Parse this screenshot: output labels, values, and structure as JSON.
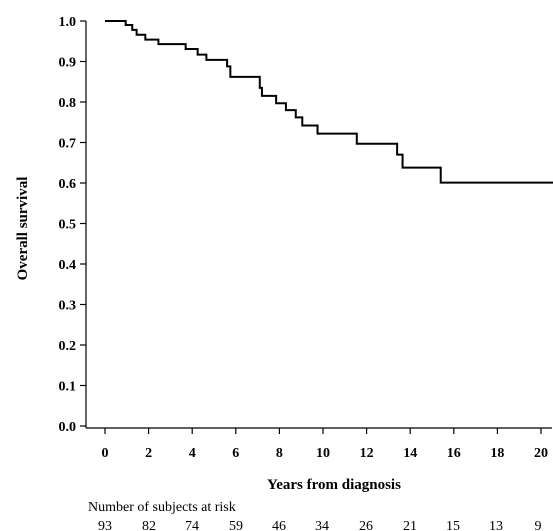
{
  "chart_data": {
    "type": "line",
    "subtype": "kaplan-meier step curve",
    "xlabel": "Years from diagnosis",
    "ylabel": "Overall survival",
    "xlim": [
      0,
      20.6
    ],
    "ylim": [
      0,
      1.0
    ],
    "x_ticks": [
      0,
      2,
      4,
      6,
      8,
      10,
      12,
      14,
      16,
      18,
      20
    ],
    "y_ticks": [
      0.0,
      0.1,
      0.2,
      0.3,
      0.4,
      0.5,
      0.6,
      0.7,
      0.8,
      0.9,
      1.0
    ],
    "x_tick_labels": [
      "0",
      "2",
      "4",
      "6",
      "8",
      "10",
      "12",
      "14",
      "16",
      "18",
      "20"
    ],
    "y_tick_labels": [
      "0.0",
      "0.1",
      "0.2",
      "0.3",
      "0.4",
      "0.5",
      "0.6",
      "0.7",
      "0.8",
      "0.9",
      "1.0"
    ],
    "grid": false,
    "series": [
      {
        "color": "#000000",
        "points": [
          [
            0,
            1.0
          ],
          [
            0.95,
            1.0
          ],
          [
            0.95,
            0.99
          ],
          [
            1.25,
            0.99
          ],
          [
            1.25,
            0.978
          ],
          [
            1.45,
            0.978
          ],
          [
            1.45,
            0.966
          ],
          [
            1.85,
            0.966
          ],
          [
            1.85,
            0.954
          ],
          [
            2.45,
            0.954
          ],
          [
            2.45,
            0.943
          ],
          [
            3.7,
            0.943
          ],
          [
            3.7,
            0.931
          ],
          [
            4.25,
            0.931
          ],
          [
            4.25,
            0.917
          ],
          [
            4.65,
            0.917
          ],
          [
            4.65,
            0.904
          ],
          [
            5.6,
            0.904
          ],
          [
            5.6,
            0.888
          ],
          [
            5.75,
            0.888
          ],
          [
            5.75,
            0.862
          ],
          [
            7.1,
            0.862
          ],
          [
            7.1,
            0.835
          ],
          [
            7.2,
            0.835
          ],
          [
            7.2,
            0.815
          ],
          [
            7.85,
            0.815
          ],
          [
            7.85,
            0.797
          ],
          [
            8.3,
            0.797
          ],
          [
            8.3,
            0.78
          ],
          [
            8.75,
            0.78
          ],
          [
            8.75,
            0.762
          ],
          [
            9.05,
            0.762
          ],
          [
            9.05,
            0.742
          ],
          [
            9.75,
            0.742
          ],
          [
            9.75,
            0.722
          ],
          [
            11.55,
            0.722
          ],
          [
            11.55,
            0.697
          ],
          [
            13.4,
            0.697
          ],
          [
            13.4,
            0.67
          ],
          [
            13.65,
            0.67
          ],
          [
            13.65,
            0.638
          ],
          [
            15.4,
            0.638
          ],
          [
            15.4,
            0.601
          ],
          [
            20.6,
            0.601
          ]
        ]
      }
    ],
    "at_risk": {
      "title": "Number of subjects at risk",
      "counts": [
        "93",
        "82",
        "74",
        "59",
        "46",
        "34",
        "26",
        "21",
        "15",
        "13",
        "9"
      ]
    }
  }
}
